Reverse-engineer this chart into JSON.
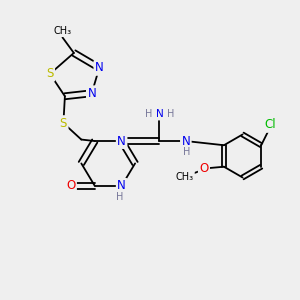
{
  "bg_color": "#efefef",
  "bond_color": "#000000",
  "atom_colors": {
    "N": "#0000ee",
    "S": "#bbbb00",
    "O": "#ee0000",
    "Cl": "#00bb00",
    "C": "#000000",
    "H": "#777799"
  },
  "figsize": [
    3.0,
    3.0
  ],
  "dpi": 100
}
